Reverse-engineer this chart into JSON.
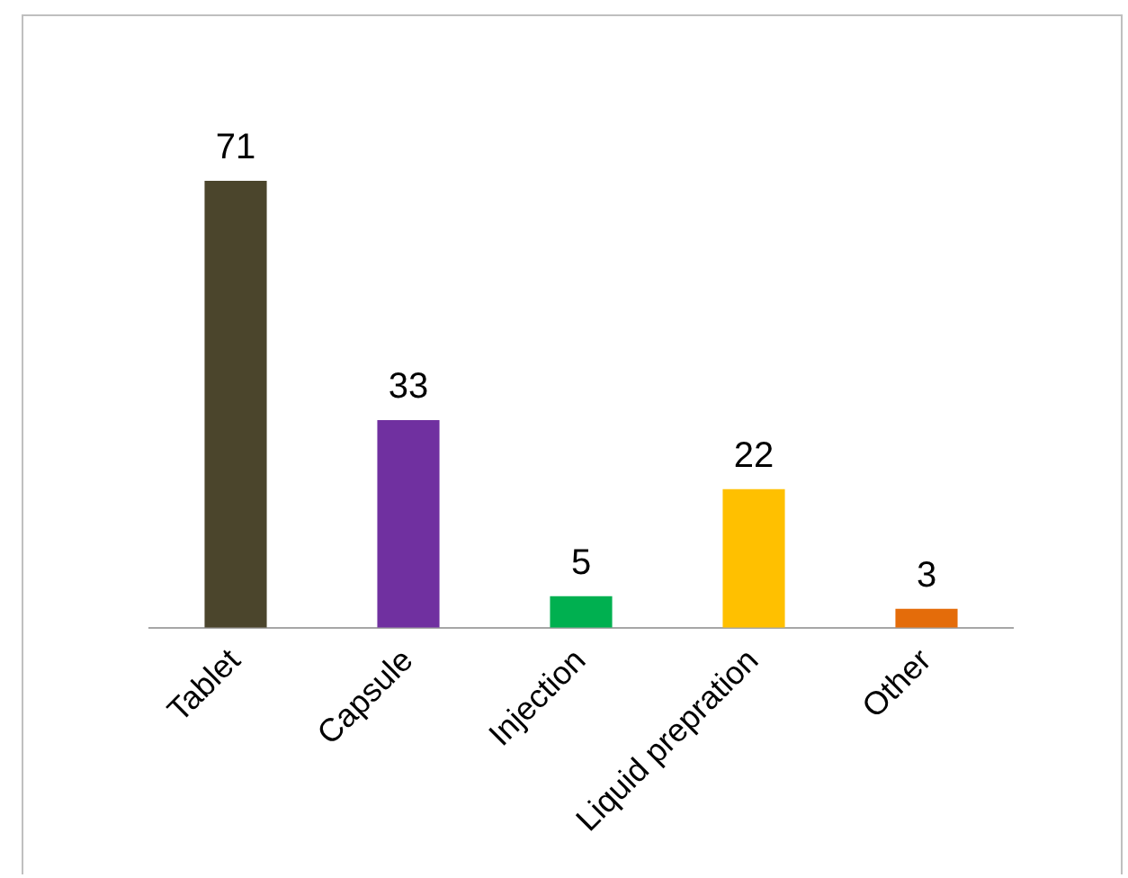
{
  "chart_data": {
    "type": "bar",
    "categories": [
      "Tablet",
      "Capsule",
      "Injection",
      "Liquid prepration",
      "Other"
    ],
    "values": [
      71,
      33,
      5,
      22,
      3
    ],
    "colors": [
      "#4b452c",
      "#7030a0",
      "#00b050",
      "#ffc000",
      "#e46c0a"
    ],
    "data_labels": true,
    "grid": false,
    "legend": false
  }
}
